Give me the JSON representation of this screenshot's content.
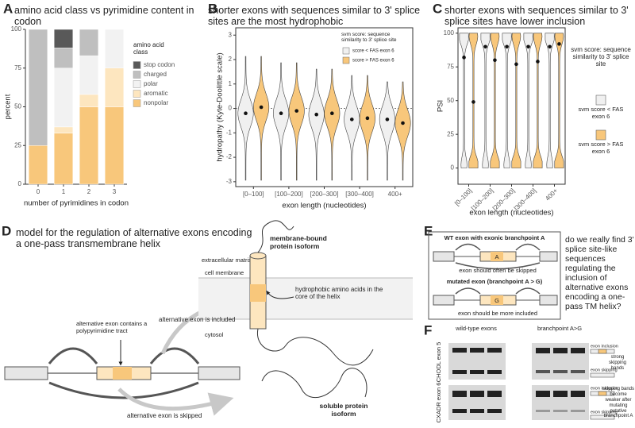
{
  "chart_data": [
    {
      "type": "bar",
      "stacked": true,
      "panel": "A",
      "title": "amino acid class vs pyrimidine content in codon",
      "xlabel": "number of pyrimidines in codon",
      "ylabel": "percent",
      "legend_title": "amino acid class",
      "categories": [
        "0",
        "1",
        "2",
        "3"
      ],
      "series": [
        {
          "name": "nonpolar",
          "color": "#f8c77b",
          "values": [
            25,
            33,
            50,
            50
          ]
        },
        {
          "name": "aromatic",
          "color": "#fde6bf",
          "values": [
            0,
            4,
            8,
            25
          ]
        },
        {
          "name": "polar",
          "color": "#f2f2f2",
          "values": [
            0,
            38,
            25,
            25
          ]
        },
        {
          "name": "charged",
          "color": "#bfbfbf",
          "values": [
            75,
            13,
            17,
            0
          ]
        },
        {
          "name": "stop codon",
          "color": "#595959",
          "values": [
            0,
            12,
            0,
            0
          ]
        }
      ],
      "ylim": [
        0,
        100
      ],
      "yticks": [
        0,
        25,
        50,
        75,
        100
      ]
    },
    {
      "type": "violin",
      "panel": "B",
      "title": "shorter exons with sequences similar to 3' splice sites are the most hydrophobic",
      "xlabel": "exon length (nucleotides)",
      "ylabel": "hydropathy (Kyte-Doolittle scale)",
      "legend_title": "svm score: sequence similarity to 3' splice site",
      "categories": [
        "[0–100]",
        "[100–200]",
        "[200–300]",
        "[300–400]",
        "400+"
      ],
      "series": [
        {
          "name": "score < FAS exon 6",
          "color": "#f0f0f0",
          "values": [
            -0.2,
            -0.2,
            -0.25,
            -0.45,
            -0.45
          ]
        },
        {
          "name": "score > FAS exon 6",
          "color": "#f8c77b",
          "values": [
            0.05,
            -0.1,
            -0.2,
            -0.4,
            -0.6
          ]
        }
      ],
      "ylim": [
        -3.2,
        3.3
      ],
      "yticks": [
        -3,
        -2,
        -1,
        0,
        1,
        2,
        3
      ],
      "hline": 0
    },
    {
      "type": "violin",
      "panel": "C",
      "title": "shorter exons with sequences similar to 3' splice sites have lower inclusion",
      "xlabel": "exon length (nucleotides)",
      "ylabel": "PSI",
      "legend_title": "svm score: sequence similarity to 3' splice site",
      "categories": [
        "[0–100]",
        "[100–200]",
        "[200–300]",
        "[300–400]",
        "400+"
      ],
      "series": [
        {
          "name": "svm score < FAS exon 6",
          "color": "#f0f0f0",
          "values": [
            82,
            90,
            90,
            90,
            90
          ]
        },
        {
          "name": "svm score > FAS exon 6",
          "color": "#f8c77b",
          "values": [
            49,
            80,
            77,
            79,
            92
          ]
        }
      ],
      "ylim": [
        -12,
        104
      ],
      "yticks": [
        0,
        25,
        50,
        75,
        100
      ]
    }
  ],
  "panel_d": {
    "label": "D",
    "title": "model for the regulation of alternative exons encoding a one-pass transmembrane helix",
    "included": "alternative exon is included",
    "polypyrimidine": "alternative exon contains a polypyrimidine tract",
    "skipped": "alternative exon is skipped",
    "membrane_isoform": "membrane-bound protein isoform",
    "extracellular": "extracellular matrix",
    "membrane": "cell membrane",
    "cytosol": "cytosol",
    "hydrophobic": "hydrophobic amino acids in the core of the helix",
    "soluble": "soluble protein isoform"
  },
  "panel_e": {
    "label": "E",
    "wt_title": "WT exon with exonic branchpoint A",
    "wt_exon": "A",
    "wt_note": "exon should often be skipped",
    "mut_title": "mutated exon (branchpoint A > G)",
    "mut_exon": "G",
    "mut_note": "exon should be more included",
    "question": "do we really find 3' splice site-like sequences regulating the inclusion of alternative exons encoding a one-pass TM helix?"
  },
  "panel_f": {
    "label": "F",
    "col_wt": "wild-type exons",
    "col_mut": "branchpoint A>G",
    "inclusion": "exon inclusion",
    "skipping": "exon skipping",
    "rows": [
      {
        "gene": "CHODL exon 5",
        "note": "strong skipping bands"
      },
      {
        "gene": "CXADR exon 6",
        "note": "skipping bands become weaker after mutating putative branchpoint A"
      }
    ]
  }
}
